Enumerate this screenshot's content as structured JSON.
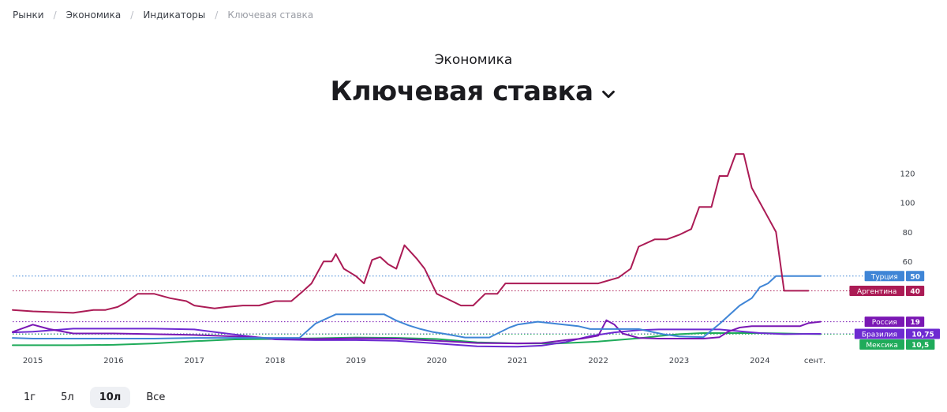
{
  "breadcrumb": [
    "Рынки",
    "Экономика",
    "Индикаторы",
    "Ключевая ставка"
  ],
  "kicker": "Экономика",
  "title": "Ключевая ставка",
  "periods": [
    {
      "label": "1г",
      "active": false
    },
    {
      "label": "5л",
      "active": false
    },
    {
      "label": "10л",
      "active": true
    },
    {
      "label": "Все",
      "active": false
    }
  ],
  "chart_data": {
    "type": "line",
    "x_range": [
      2014.75,
      2024.9
    ],
    "y_range": [
      0,
      125
    ],
    "y_ticks": [
      60,
      80,
      100,
      120
    ],
    "x_ticks": [
      {
        "x": 2015.0,
        "label": "2015"
      },
      {
        "x": 2016.0,
        "label": "2016"
      },
      {
        "x": 2017.0,
        "label": "2017"
      },
      {
        "x": 2018.0,
        "label": "2018"
      },
      {
        "x": 2019.0,
        "label": "2019"
      },
      {
        "x": 2020.0,
        "label": "2020"
      },
      {
        "x": 2021.0,
        "label": "2021"
      },
      {
        "x": 2022.0,
        "label": "2022"
      },
      {
        "x": 2023.0,
        "label": "2023"
      },
      {
        "x": 2024.0,
        "label": "2024"
      },
      {
        "x": 2024.68,
        "label": "сент."
      }
    ],
    "series": [
      {
        "name": "Аргентина",
        "value_label": "40",
        "color": "#ab1b55",
        "last": 40,
        "points": [
          [
            2014.75,
            27
          ],
          [
            2015.0,
            26
          ],
          [
            2015.5,
            25
          ],
          [
            2015.75,
            27
          ],
          [
            2015.9,
            27
          ],
          [
            2016.05,
            29
          ],
          [
            2016.15,
            32
          ],
          [
            2016.3,
            38
          ],
          [
            2016.5,
            38
          ],
          [
            2016.7,
            35
          ],
          [
            2016.9,
            33
          ],
          [
            2017.0,
            30
          ],
          [
            2017.25,
            28
          ],
          [
            2017.4,
            29
          ],
          [
            2017.6,
            30
          ],
          [
            2017.8,
            30
          ],
          [
            2018.0,
            33
          ],
          [
            2018.2,
            33
          ],
          [
            2018.35,
            40
          ],
          [
            2018.45,
            45
          ],
          [
            2018.6,
            60
          ],
          [
            2018.7,
            60
          ],
          [
            2018.75,
            65
          ],
          [
            2018.85,
            55
          ],
          [
            2019.0,
            50
          ],
          [
            2019.1,
            45
          ],
          [
            2019.2,
            61
          ],
          [
            2019.3,
            63
          ],
          [
            2019.4,
            58
          ],
          [
            2019.5,
            55
          ],
          [
            2019.6,
            71
          ],
          [
            2019.75,
            62
          ],
          [
            2019.85,
            55
          ],
          [
            2020.0,
            38
          ],
          [
            2020.15,
            34
          ],
          [
            2020.3,
            30
          ],
          [
            2020.45,
            30
          ],
          [
            2020.6,
            38
          ],
          [
            2020.7,
            38
          ],
          [
            2020.75,
            38
          ],
          [
            2020.85,
            45
          ],
          [
            2021.0,
            45
          ],
          [
            2021.4,
            45
          ],
          [
            2021.8,
            45
          ],
          [
            2022.0,
            45
          ],
          [
            2022.25,
            49
          ],
          [
            2022.4,
            55
          ],
          [
            2022.5,
            70
          ],
          [
            2022.7,
            75
          ],
          [
            2022.85,
            75
          ],
          [
            2023.0,
            78
          ],
          [
            2023.15,
            82
          ],
          [
            2023.25,
            97
          ],
          [
            2023.4,
            97
          ],
          [
            2023.5,
            118
          ],
          [
            2023.6,
            118
          ],
          [
            2023.7,
            133
          ],
          [
            2023.8,
            133
          ],
          [
            2023.9,
            110
          ],
          [
            2024.0,
            100
          ],
          [
            2024.1,
            90
          ],
          [
            2024.2,
            80
          ],
          [
            2024.3,
            40
          ],
          [
            2024.5,
            40
          ],
          [
            2024.6,
            40
          ]
        ]
      },
      {
        "name": "Турция",
        "value_label": "50",
        "color": "#3f85d6",
        "last": 50,
        "points": [
          [
            2014.75,
            8
          ],
          [
            2015.0,
            7.5
          ],
          [
            2015.5,
            7.5
          ],
          [
            2016.0,
            7.5
          ],
          [
            2016.5,
            7.5
          ],
          [
            2017.0,
            8
          ],
          [
            2017.5,
            8
          ],
          [
            2018.0,
            8
          ],
          [
            2018.3,
            8
          ],
          [
            2018.5,
            17.75
          ],
          [
            2018.75,
            24
          ],
          [
            2019.0,
            24
          ],
          [
            2019.35,
            24
          ],
          [
            2019.5,
            19.75
          ],
          [
            2019.65,
            16.5
          ],
          [
            2019.8,
            14
          ],
          [
            2019.95,
            12
          ],
          [
            2020.1,
            10.75
          ],
          [
            2020.35,
            8.25
          ],
          [
            2020.65,
            8.25
          ],
          [
            2020.9,
            15
          ],
          [
            2021.0,
            17
          ],
          [
            2021.25,
            19
          ],
          [
            2021.75,
            16
          ],
          [
            2021.9,
            14
          ],
          [
            2022.0,
            14
          ],
          [
            2022.5,
            14
          ],
          [
            2022.8,
            10.5
          ],
          [
            2023.0,
            9
          ],
          [
            2023.3,
            8.5
          ],
          [
            2023.5,
            17.5
          ],
          [
            2023.75,
            30
          ],
          [
            2023.9,
            35
          ],
          [
            2024.0,
            42.5
          ],
          [
            2024.1,
            45
          ],
          [
            2024.2,
            50
          ],
          [
            2024.4,
            50
          ],
          [
            2024.6,
            50
          ],
          [
            2024.75,
            50
          ]
        ]
      },
      {
        "name": "Россия",
        "value_label": "19",
        "color": "#7a17b4",
        "last": 19,
        "points": [
          [
            2014.75,
            12
          ],
          [
            2015.0,
            17
          ],
          [
            2015.2,
            14
          ],
          [
            2015.5,
            11
          ],
          [
            2016.0,
            11
          ],
          [
            2016.5,
            10.5
          ],
          [
            2017.0,
            10
          ],
          [
            2017.5,
            9
          ],
          [
            2018.0,
            7.75
          ],
          [
            2018.5,
            7.25
          ],
          [
            2019.0,
            7.75
          ],
          [
            2019.5,
            7.5
          ],
          [
            2020.0,
            6
          ],
          [
            2020.5,
            4.5
          ],
          [
            2021.0,
            4.25
          ],
          [
            2021.3,
            4.5
          ],
          [
            2021.6,
            6.5
          ],
          [
            2021.8,
            7.5
          ],
          [
            2022.0,
            9.5
          ],
          [
            2022.1,
            20
          ],
          [
            2022.2,
            17
          ],
          [
            2022.3,
            11
          ],
          [
            2022.5,
            8
          ],
          [
            2022.75,
            7.5
          ],
          [
            2023.0,
            7.5
          ],
          [
            2023.3,
            7.5
          ],
          [
            2023.5,
            8.5
          ],
          [
            2023.6,
            12
          ],
          [
            2023.75,
            15
          ],
          [
            2023.9,
            16
          ],
          [
            2024.1,
            16
          ],
          [
            2024.5,
            16
          ],
          [
            2024.6,
            18
          ],
          [
            2024.75,
            19
          ]
        ]
      },
      {
        "name": "Бразилия",
        "value_label": "10,75",
        "color": "#6d2ad1",
        "last": 10.75,
        "points": [
          [
            2014.75,
            11.75
          ],
          [
            2015.0,
            12.25
          ],
          [
            2015.5,
            14.25
          ],
          [
            2016.0,
            14.25
          ],
          [
            2016.5,
            14.25
          ],
          [
            2017.0,
            13.75
          ],
          [
            2017.5,
            10.25
          ],
          [
            2018.0,
            7
          ],
          [
            2018.5,
            6.5
          ],
          [
            2019.0,
            6.5
          ],
          [
            2019.5,
            6.0
          ],
          [
            2020.0,
            4.25
          ],
          [
            2020.5,
            2.25
          ],
          [
            2021.0,
            2.0
          ],
          [
            2021.3,
            2.75
          ],
          [
            2021.6,
            5.25
          ],
          [
            2021.9,
            9.25
          ],
          [
            2022.2,
            11.75
          ],
          [
            2022.5,
            13.25
          ],
          [
            2022.75,
            13.75
          ],
          [
            2023.0,
            13.75
          ],
          [
            2023.5,
            13.75
          ],
          [
            2023.7,
            12.75
          ],
          [
            2024.0,
            11.25
          ],
          [
            2024.3,
            10.5
          ],
          [
            2024.6,
            10.75
          ],
          [
            2024.75,
            10.75
          ]
        ]
      },
      {
        "name": "Мексика",
        "value_label": "10,5",
        "color": "#1fab5a",
        "last": 10.5,
        "points": [
          [
            2014.75,
            3
          ],
          [
            2015.5,
            3
          ],
          [
            2016.0,
            3.25
          ],
          [
            2016.5,
            4.25
          ],
          [
            2017.0,
            5.75
          ],
          [
            2017.5,
            7
          ],
          [
            2018.0,
            7.25
          ],
          [
            2018.5,
            7.75
          ],
          [
            2019.0,
            8.25
          ],
          [
            2019.5,
            8
          ],
          [
            2020.0,
            7.25
          ],
          [
            2020.5,
            5.0
          ],
          [
            2021.0,
            4.25
          ],
          [
            2021.5,
            4.25
          ],
          [
            2021.8,
            5.0
          ],
          [
            2022.0,
            5.5
          ],
          [
            2022.5,
            7.75
          ],
          [
            2022.75,
            9.25
          ],
          [
            2023.0,
            10.5
          ],
          [
            2023.3,
            11.25
          ],
          [
            2023.6,
            11.25
          ],
          [
            2024.0,
            11.25
          ],
          [
            2024.3,
            11.0
          ],
          [
            2024.75,
            10.5
          ]
        ]
      }
    ]
  }
}
